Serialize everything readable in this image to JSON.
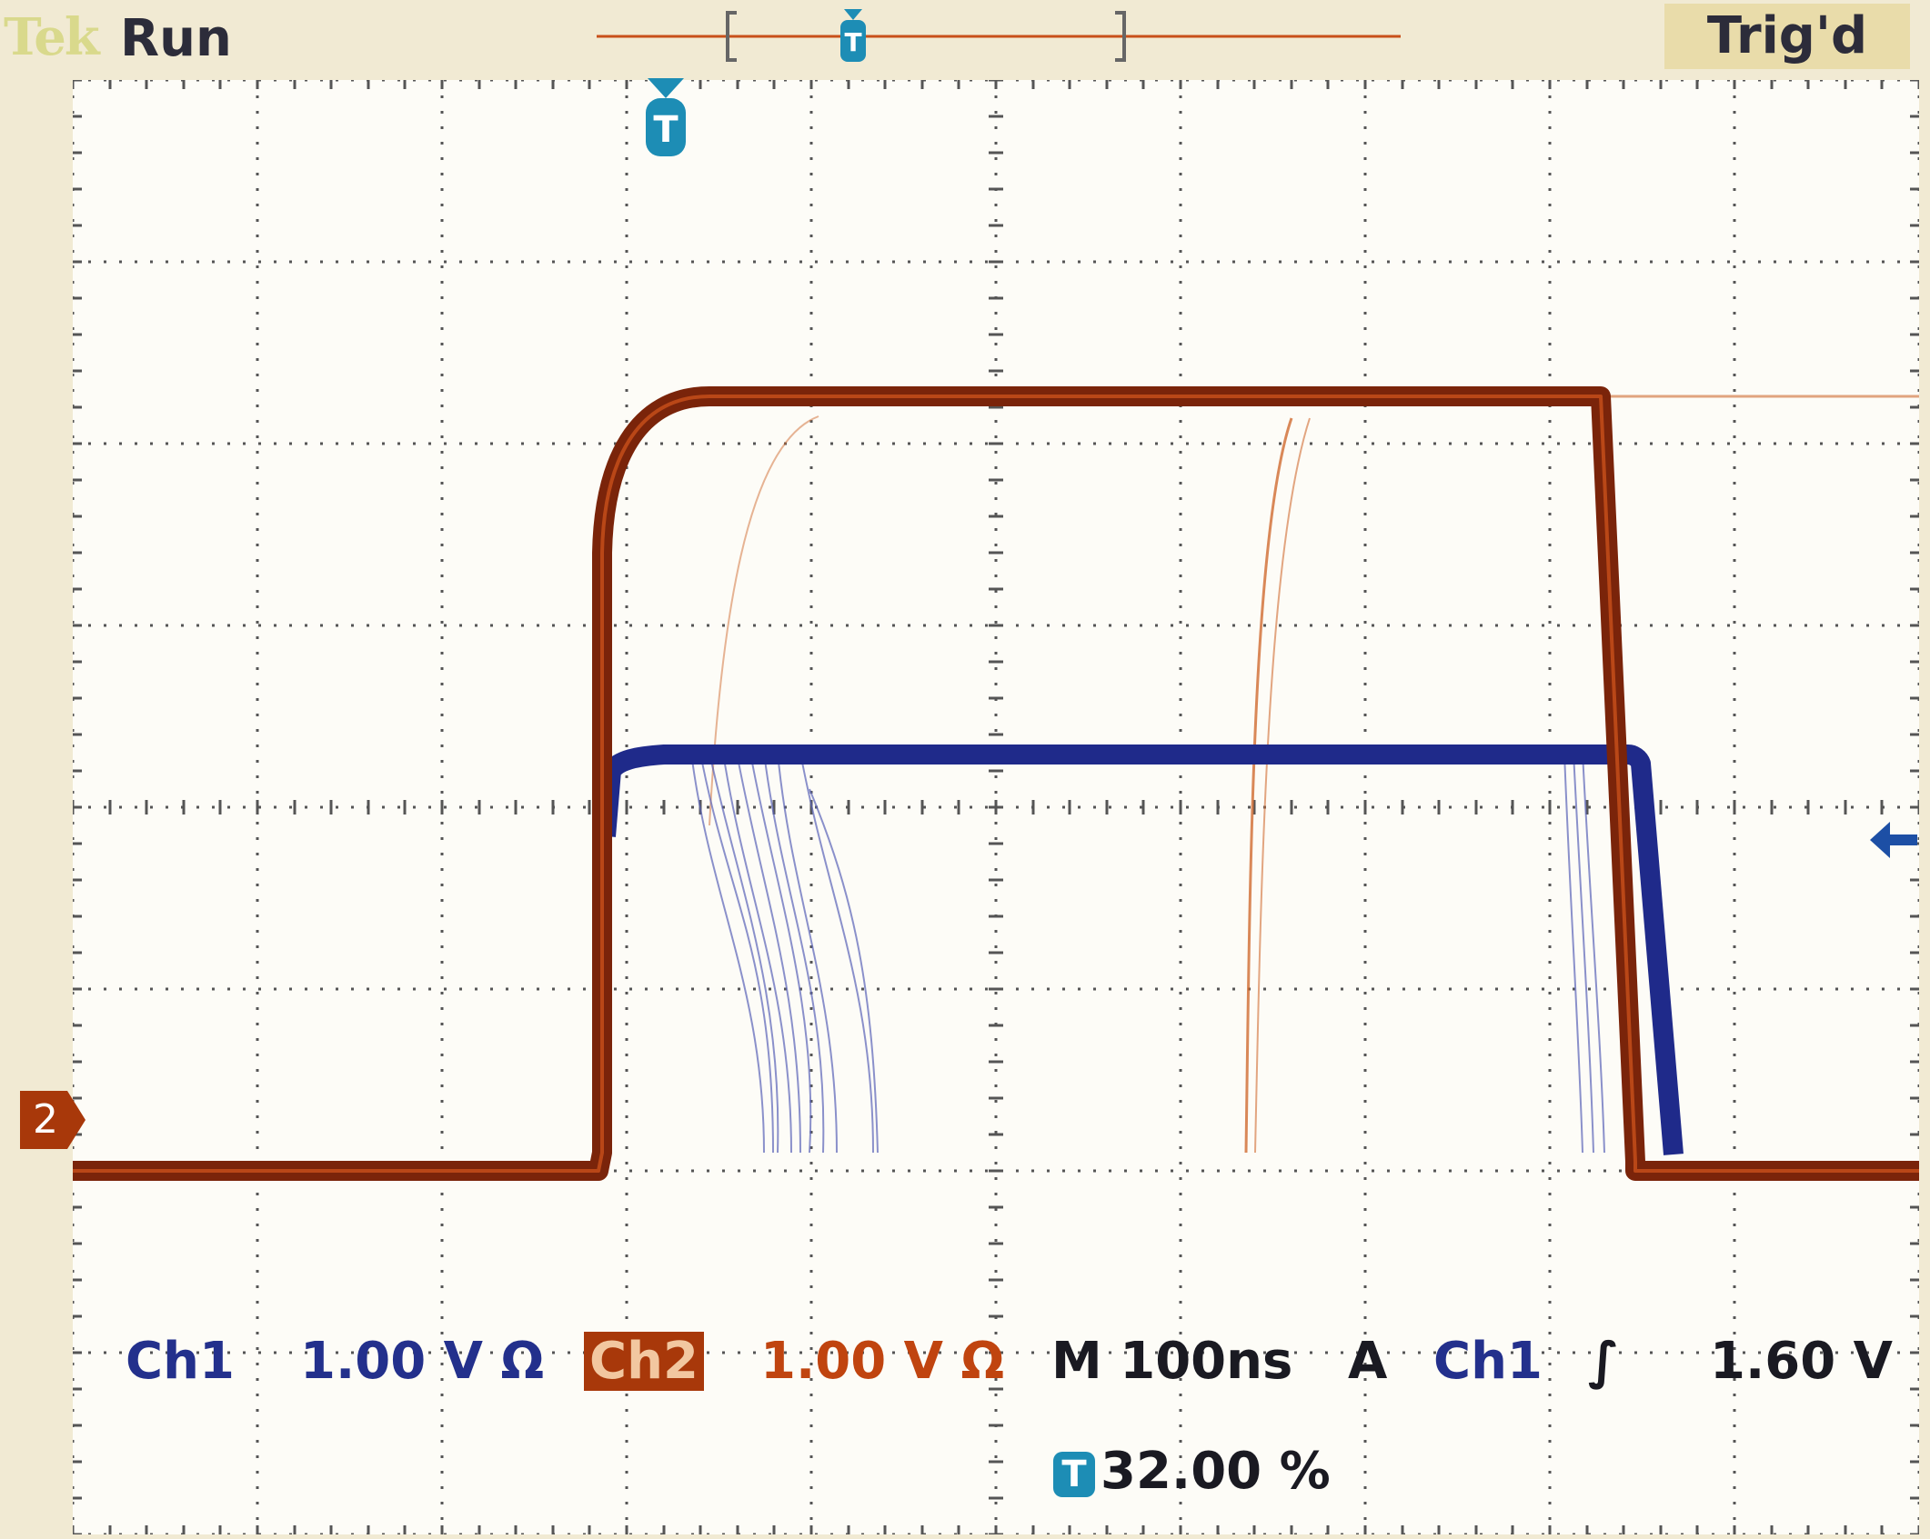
{
  "header": {
    "brand": "Tek",
    "acquisition_state": "Run",
    "trigger_state": "Trig'd"
  },
  "readouts": {
    "ch1_label": "Ch1",
    "ch1_scale": "1.00 V",
    "ch1_coupling_symbol": "Ω",
    "ch2_label": "Ch2",
    "ch2_scale": "1.00 V",
    "ch2_coupling_symbol": "Ω",
    "timebase": "M 100ns",
    "trigger_mode": "A",
    "trigger_source": "Ch1",
    "trigger_slope_symbol": "∫",
    "trigger_level": "1.60 V",
    "trigger_position_badge": "T",
    "trigger_position": "32.00 %"
  },
  "markers": {
    "ch2_ground_label": "2",
    "trigger_marker_label": "T",
    "record_trigger_label": "T"
  },
  "colors": {
    "ch1": "#23308c",
    "ch2": "#b8400c",
    "trigger": "#1d8db5",
    "grid": "#555555",
    "screen_bg": "#fdfcf7"
  }
}
